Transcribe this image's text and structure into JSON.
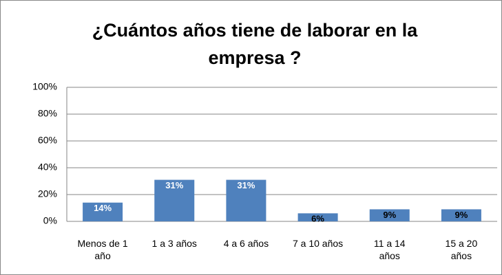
{
  "chart_data": {
    "type": "bar",
    "title_lines": [
      "¿Cuántos años tiene de laborar en la",
      "empresa ?"
    ],
    "categories": [
      "Menos de 1 año",
      "1 a 3 años",
      "4 a 6 años",
      "7 a 10 años",
      "11 a 14 años",
      "15 a 20 años"
    ],
    "values": [
      14,
      31,
      31,
      6,
      9,
      9
    ],
    "value_labels": [
      "14%",
      "31%",
      "31%",
      "6%",
      "9%",
      "9%"
    ],
    "color": "#4f81bd",
    "ylim": [
      0,
      100
    ],
    "yticks": [
      {
        "value": 0,
        "label": "0%"
      },
      {
        "value": 20,
        "label": "20%"
      },
      {
        "value": 40,
        "label": "40%"
      },
      {
        "value": 60,
        "label": "60%"
      },
      {
        "value": 80,
        "label": "80%"
      },
      {
        "value": 100,
        "label": "100%"
      }
    ],
    "grid": true
  }
}
